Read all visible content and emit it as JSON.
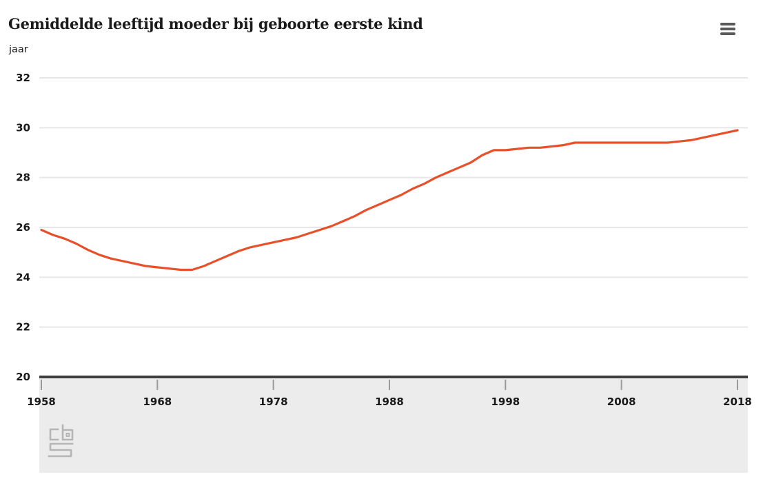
{
  "header": {
    "title": "Gemiddelde leeftijd moeder bij geboorte eerste kind",
    "unit_label": "jaar"
  },
  "colors": {
    "line": "#e8502a",
    "grid": "#e7e7e7",
    "axis": "#3f3f3f",
    "band": "#ececec",
    "tick_mark": "#9a9a9a",
    "text": "#191919",
    "menu_icon": "#59595b",
    "logo": "#b5b5b5"
  },
  "chart_data": {
    "type": "line",
    "title": "Gemiddelde leeftijd moeder bij geboorte eerste kind",
    "ylabel": "jaar",
    "xlabel": "",
    "ylim": [
      20,
      32
    ],
    "yticks": [
      32,
      30,
      28,
      26,
      24,
      22,
      20
    ],
    "xlim": [
      1958,
      2018
    ],
    "xticks": [
      1958,
      1968,
      1978,
      1988,
      1998,
      2008,
      2018
    ],
    "grid": true,
    "legend": false,
    "series": [
      {
        "name": "Gemiddelde leeftijd moeder bij geboorte eerste kind",
        "x": [
          1958,
          1959,
          1960,
          1961,
          1962,
          1963,
          1964,
          1965,
          1966,
          1967,
          1968,
          1969,
          1970,
          1971,
          1972,
          1973,
          1974,
          1975,
          1976,
          1977,
          1978,
          1979,
          1980,
          1981,
          1982,
          1983,
          1984,
          1985,
          1986,
          1987,
          1988,
          1989,
          1990,
          1991,
          1992,
          1993,
          1994,
          1995,
          1996,
          1997,
          1998,
          1999,
          2000,
          2001,
          2002,
          2003,
          2004,
          2005,
          2006,
          2007,
          2008,
          2009,
          2010,
          2011,
          2012,
          2013,
          2014,
          2015,
          2016,
          2017,
          2018
        ],
        "y": [
          25.9,
          25.7,
          25.55,
          25.35,
          25.1,
          24.9,
          24.75,
          24.65,
          24.55,
          24.45,
          24.4,
          24.35,
          24.3,
          24.3,
          24.45,
          24.65,
          24.85,
          25.05,
          25.2,
          25.3,
          25.4,
          25.5,
          25.6,
          25.75,
          25.9,
          26.05,
          26.25,
          26.45,
          26.7,
          26.9,
          27.1,
          27.3,
          27.55,
          27.75,
          28.0,
          28.2,
          28.4,
          28.6,
          28.9,
          29.1,
          29.1,
          29.15,
          29.2,
          29.2,
          29.25,
          29.3,
          29.4,
          29.4,
          29.4,
          29.4,
          29.4,
          29.4,
          29.4,
          29.4,
          29.4,
          29.45,
          29.5,
          29.6,
          29.7,
          29.8,
          29.9
        ]
      }
    ]
  }
}
